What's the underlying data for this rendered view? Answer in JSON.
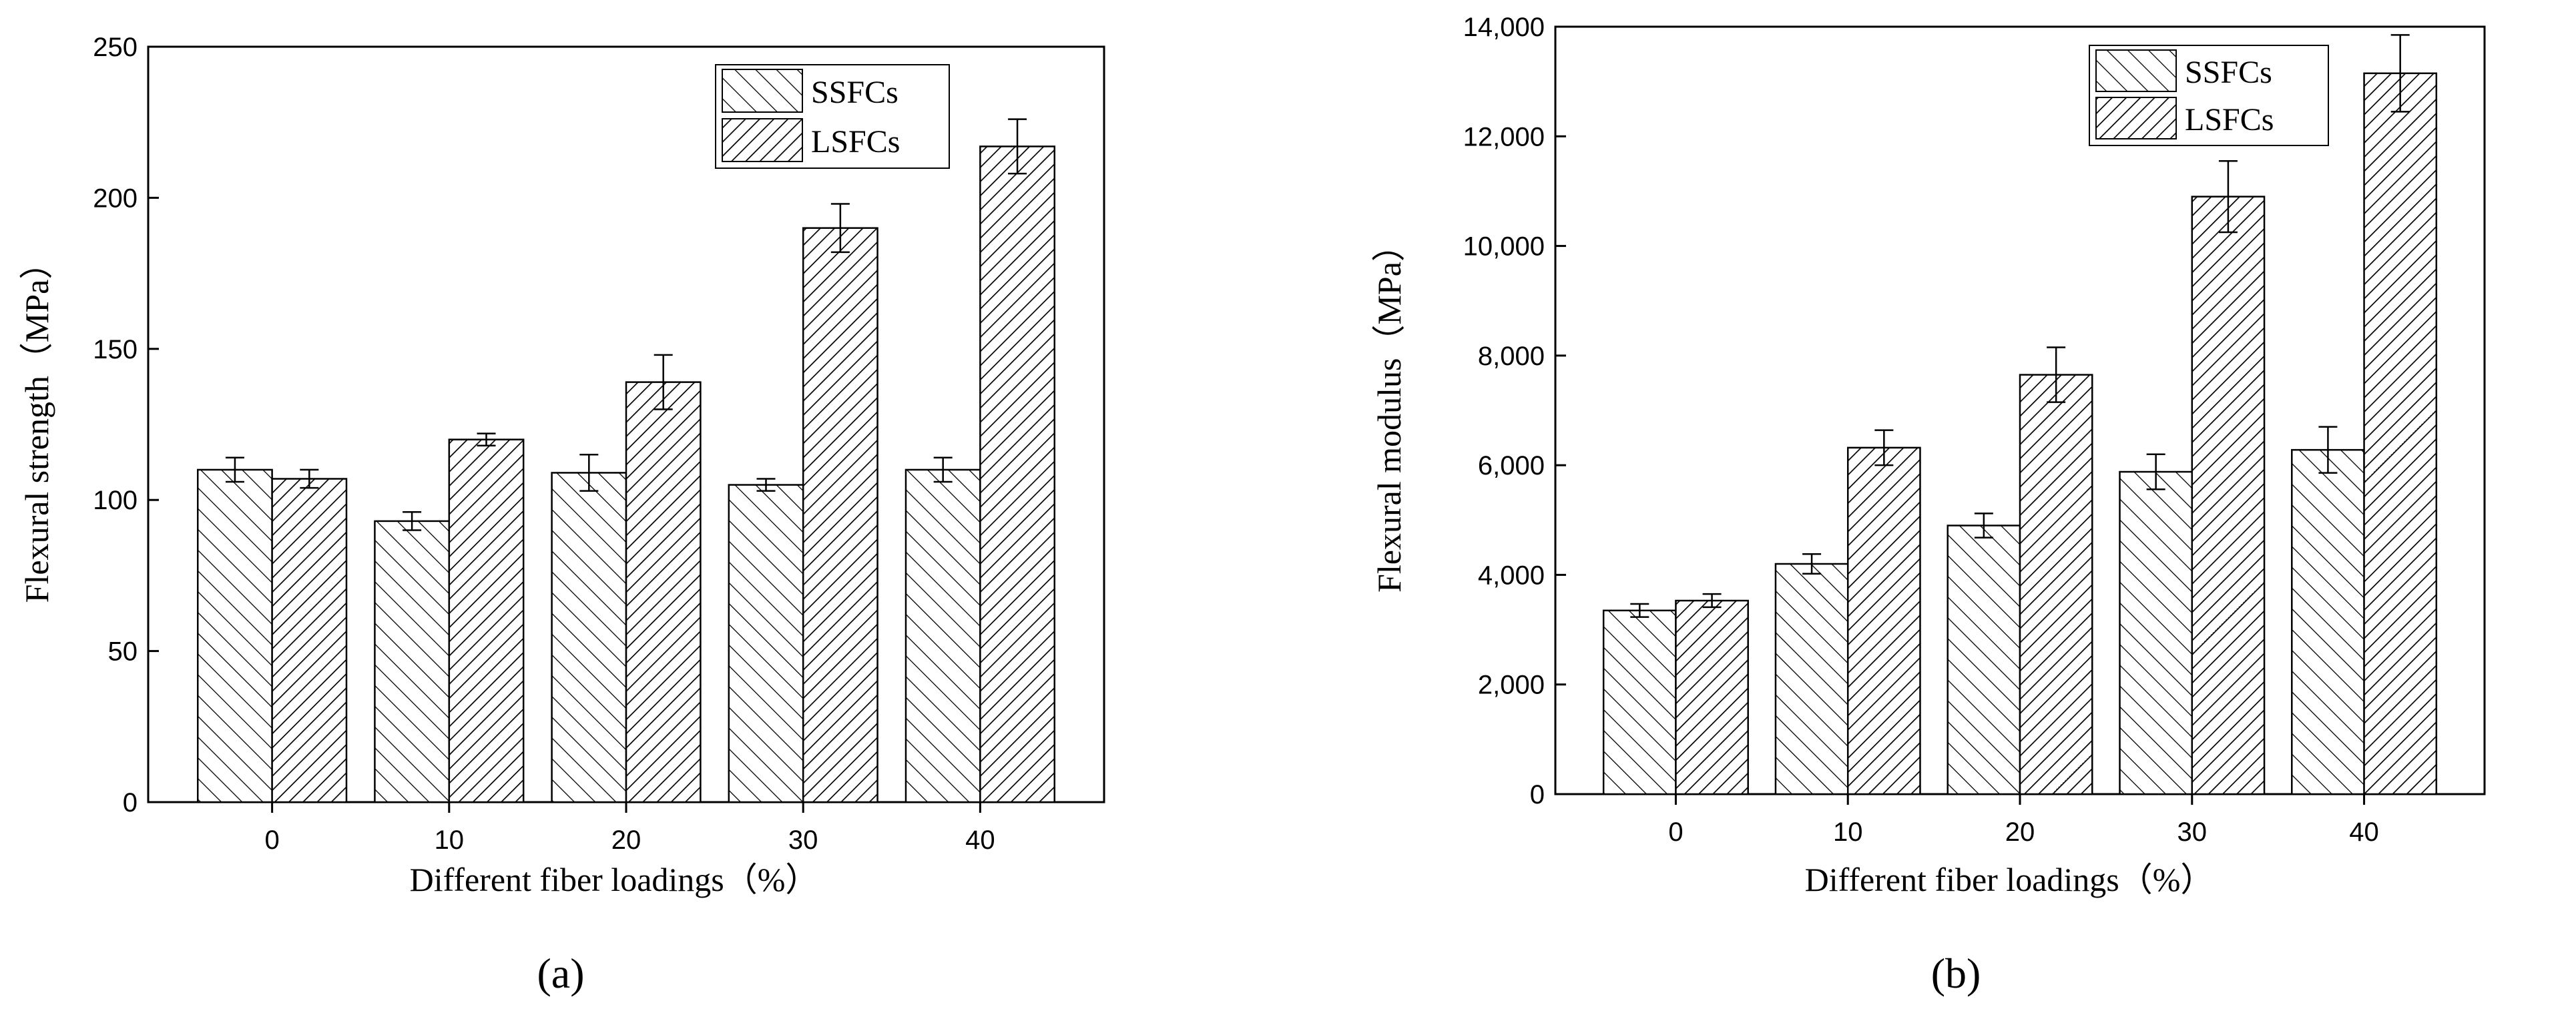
{
  "chart_data": [
    {
      "type": "bar",
      "panel_label": "(a)",
      "categories": [
        "0",
        "10",
        "20",
        "30",
        "40"
      ],
      "series": [
        {
          "name": "SSFCs",
          "values": [
            110,
            93,
            109,
            105,
            110
          ],
          "errors": [
            4,
            3,
            6,
            2,
            4
          ],
          "pattern": "light-hatch"
        },
        {
          "name": "LSFCs",
          "values": [
            107,
            120,
            139,
            190,
            217
          ],
          "errors": [
            3,
            2,
            9,
            8,
            9
          ],
          "pattern": "dense-hatch"
        }
      ],
      "xlabel": "Different fiber loadings（%）",
      "ylabel": "Flexural strength（MPa）",
      "ylim": [
        0,
        250
      ],
      "yticks": [
        "0",
        "50",
        "100",
        "150",
        "200",
        "250"
      ],
      "ytick_values": [
        0,
        50,
        100,
        150,
        200,
        250
      ],
      "grid": false,
      "legend_position": "top-right"
    },
    {
      "type": "bar",
      "panel_label": "(b)",
      "categories": [
        "0",
        "10",
        "20",
        "30",
        "40"
      ],
      "series": [
        {
          "name": "SSFCs",
          "values": [
            3350,
            4200,
            4900,
            5880,
            6280
          ],
          "errors": [
            120,
            180,
            220,
            320,
            420
          ],
          "pattern": "light-hatch"
        },
        {
          "name": "LSFCs",
          "values": [
            3530,
            6320,
            7650,
            10900,
            13150
          ],
          "errors": [
            120,
            320,
            500,
            650,
            700
          ],
          "pattern": "dense-hatch"
        }
      ],
      "xlabel": "Different fiber loadings（%）",
      "ylabel": "Flexural modulus（MPa）",
      "ylim": [
        0,
        14000
      ],
      "yticks": [
        "0",
        "2,000",
        "4,000",
        "6,000",
        "8,000",
        "10,000",
        "12,000",
        "14,000"
      ],
      "ytick_values": [
        0,
        2000,
        4000,
        6000,
        8000,
        10000,
        12000,
        14000
      ],
      "grid": false,
      "legend_position": "top-right"
    }
  ]
}
